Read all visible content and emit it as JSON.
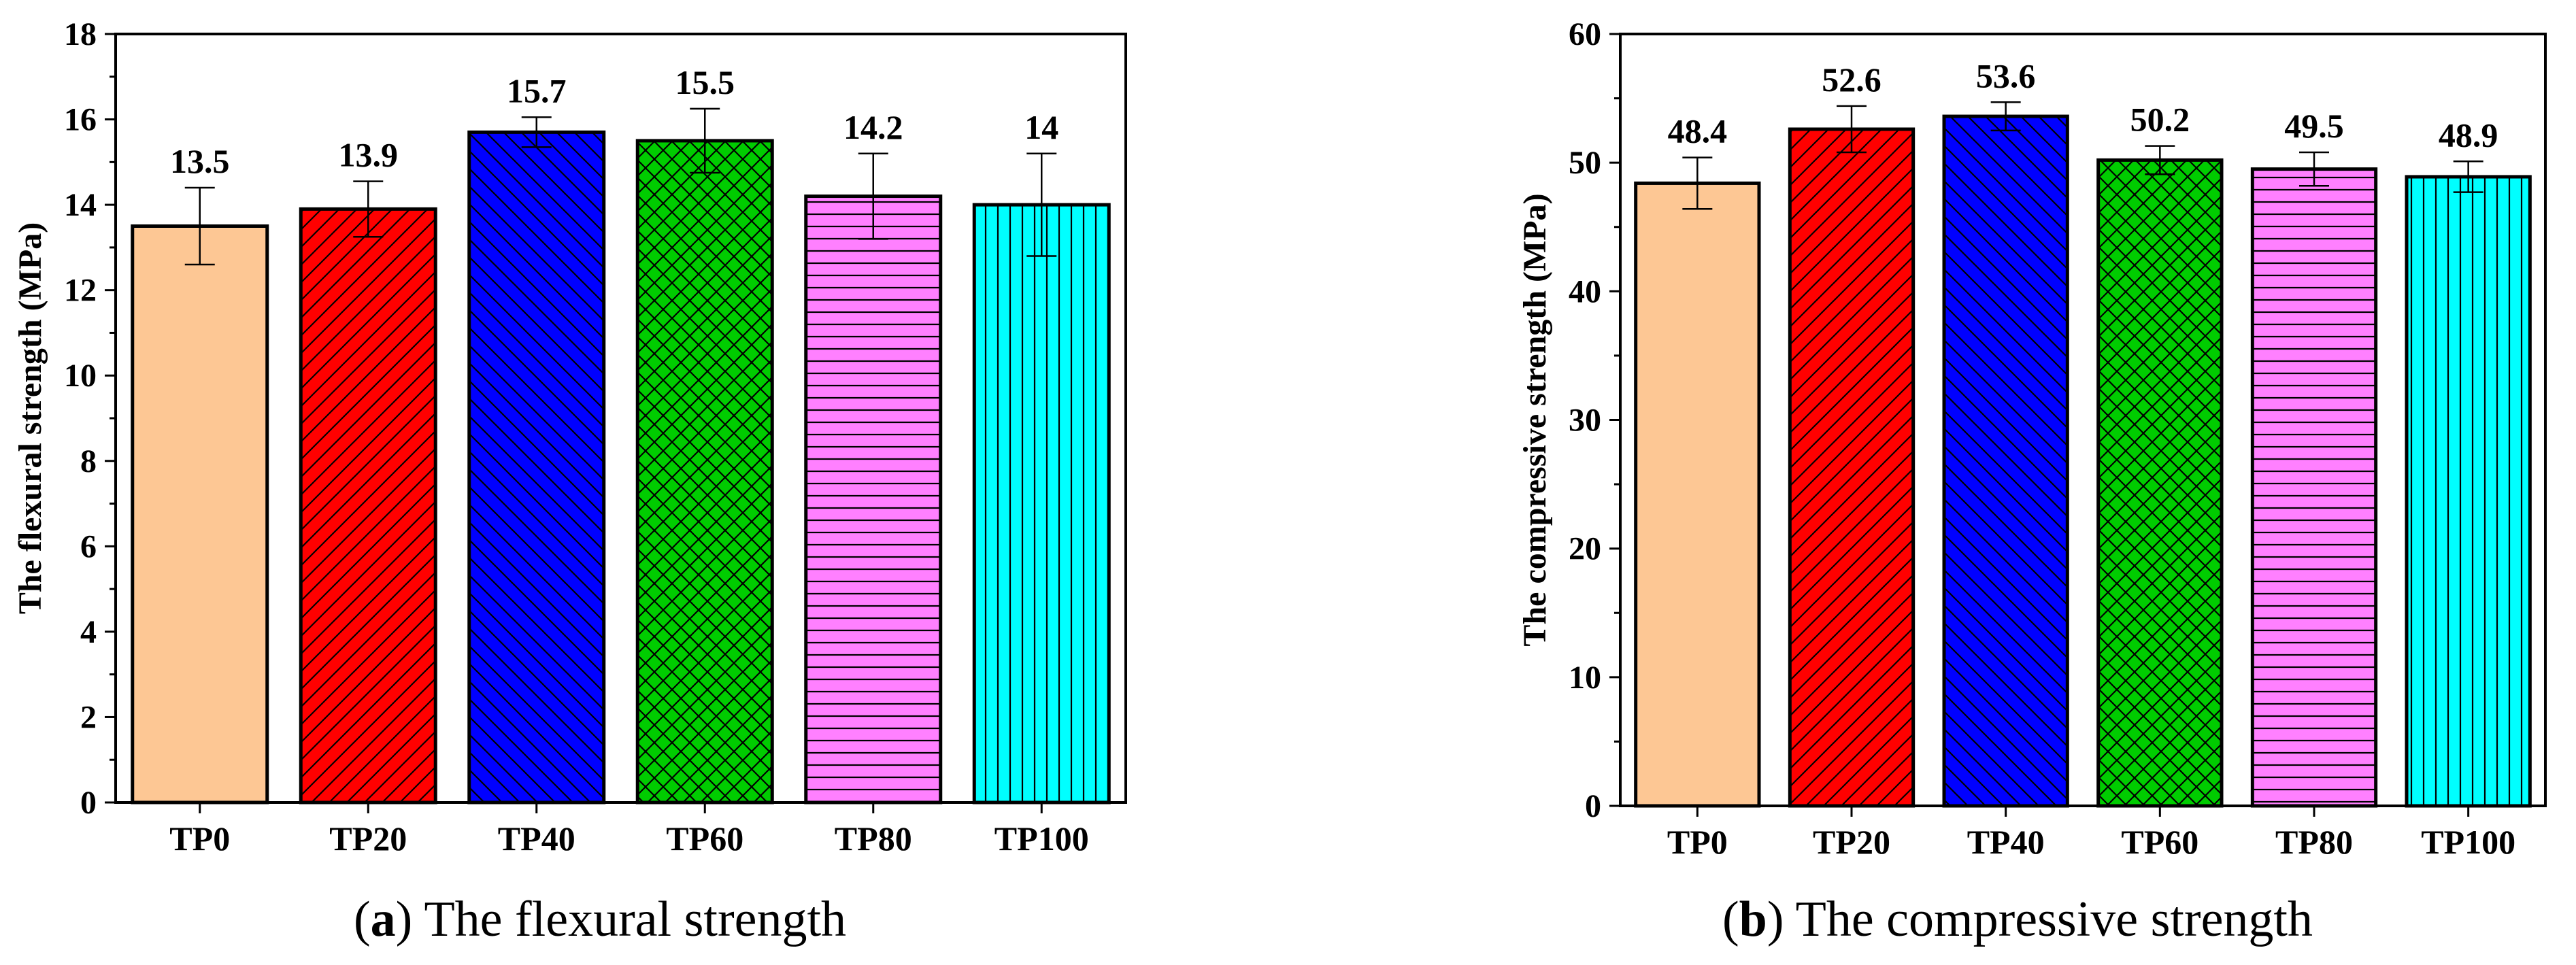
{
  "chart_data": [
    {
      "type": "bar",
      "panel_letter": "a",
      "caption": "The flexural strength",
      "categories": [
        "TP0",
        "TP20",
        "TP40",
        "TP60",
        "TP80",
        "TP100"
      ],
      "values": [
        13.5,
        13.9,
        15.7,
        15.5,
        14.2,
        14
      ],
      "value_labels": [
        "13.5",
        "13.9",
        "15.7",
        "15.5",
        "14.2",
        "14"
      ],
      "error": [
        0.9,
        0.65,
        0.35,
        0.75,
        1.0,
        1.2
      ],
      "colors": [
        "#FDC794",
        "#FF0000",
        "#0000FF",
        "#00CC00",
        "#FF80FF",
        "#00FFFF"
      ],
      "patterns": [
        "none",
        "diag-right",
        "diag-left",
        "cross",
        "horizontal",
        "vertical"
      ],
      "xlabel": "",
      "ylabel": "The flexural strength (MPa)",
      "ylim": [
        0,
        18
      ],
      "yticks": [
        0,
        2,
        4,
        6,
        8,
        10,
        12,
        14,
        16,
        18
      ],
      "grid": false
    },
    {
      "type": "bar",
      "panel_letter": "b",
      "caption": "The compressive strength",
      "categories": [
        "TP0",
        "TP20",
        "TP40",
        "TP60",
        "TP80",
        "TP100"
      ],
      "values": [
        48.4,
        52.6,
        53.6,
        50.2,
        49.5,
        48.9
      ],
      "value_labels": [
        "48.4",
        "52.6",
        "53.6",
        "50.2",
        "49.5",
        "48.9"
      ],
      "error": [
        2.0,
        1.8,
        1.1,
        1.1,
        1.3,
        1.2
      ],
      "colors": [
        "#FDC794",
        "#FF0000",
        "#0000FF",
        "#00CC00",
        "#FF80FF",
        "#00FFFF"
      ],
      "patterns": [
        "none",
        "diag-right",
        "diag-left",
        "cross",
        "horizontal",
        "vertical"
      ],
      "xlabel": "",
      "ylabel": "The compressive strength (MPa)",
      "ylim": [
        0,
        60
      ],
      "yticks": [
        0,
        10,
        20,
        30,
        40,
        50,
        60
      ],
      "grid": false
    }
  ]
}
